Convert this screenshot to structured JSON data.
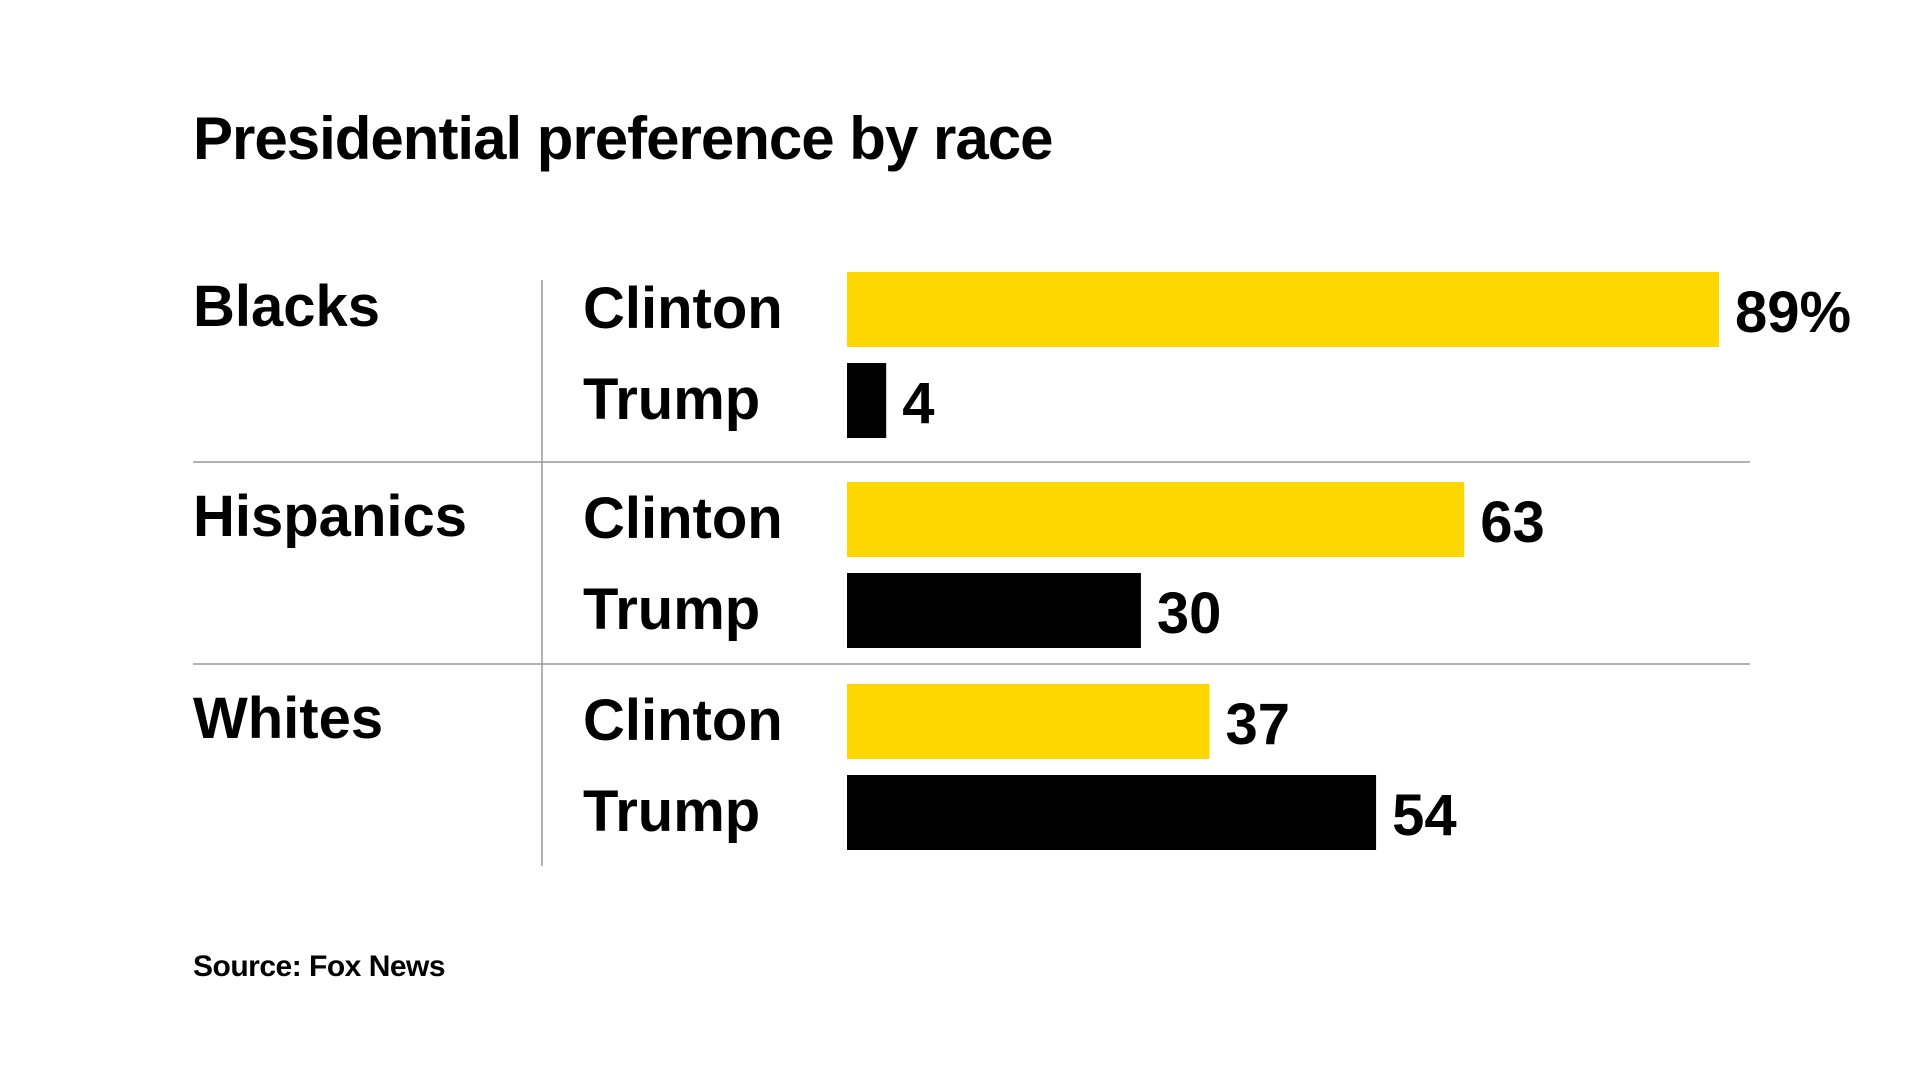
{
  "title": "Presidential preference by race",
  "source": "Source: Fox News",
  "colors": {
    "Clinton": "#FFD700",
    "Trump": "#000000",
    "text": "#000000",
    "rule": "#999999"
  },
  "chart_data": {
    "type": "bar",
    "orientation": "horizontal",
    "title": "Presidential preference by race",
    "unit": "%",
    "groups": [
      {
        "name": "Blacks",
        "bars": [
          {
            "candidate": "Clinton",
            "value": 89,
            "label": "89%"
          },
          {
            "candidate": "Trump",
            "value": 4,
            "label": "4"
          }
        ]
      },
      {
        "name": "Hispanics",
        "bars": [
          {
            "candidate": "Clinton",
            "value": 63,
            "label": "63"
          },
          {
            "candidate": "Trump",
            "value": 30,
            "label": "30"
          }
        ]
      },
      {
        "name": "Whites",
        "bars": [
          {
            "candidate": "Clinton",
            "value": 37,
            "label": "37"
          },
          {
            "candidate": "Trump",
            "value": 54,
            "label": "54"
          }
        ]
      }
    ],
    "xlim": [
      0,
      89
    ],
    "grid": false,
    "legend": "none"
  }
}
